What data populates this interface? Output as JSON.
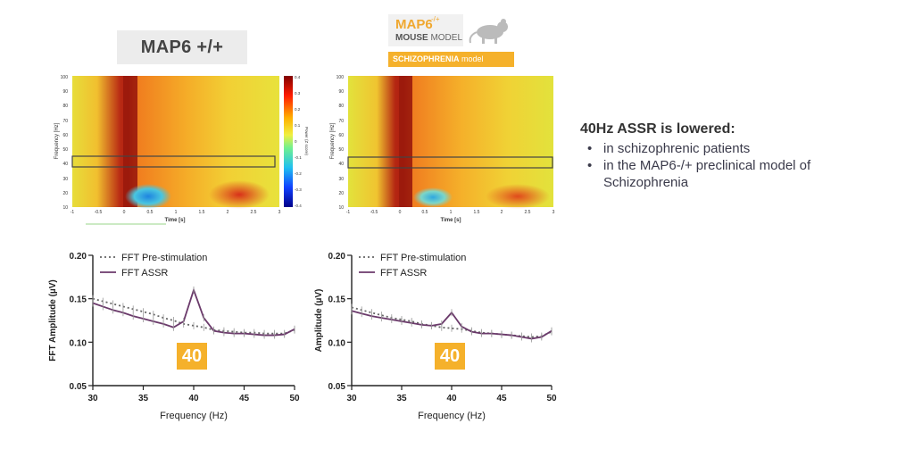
{
  "labels": {
    "map6_title": "MAP6 +/+",
    "logo_title": "MAP6",
    "logo_sup": "-/+",
    "logo_mouse": "MOUSE",
    "logo_model": " MODEL",
    "logo_bar_bold": "SCHIZOPHRENIA",
    "logo_bar_rest": " model"
  },
  "summary": {
    "heading": "40Hz ASSR is lowered:",
    "bullets": [
      "in schizophrenic patients",
      "in the MAP6-/+ preclinical model of Schizophrenia"
    ]
  },
  "colors": {
    "accent": "#f5b12b",
    "fft_assr": "#6b3a6b",
    "fft_pre": "#666666"
  },
  "chart_data": [
    {
      "type": "heatmap",
      "title": "MAP6 +/+",
      "xlabel": "Time [s]",
      "ylabel": "Frequency [Hz]",
      "x_ticks": [
        "-1",
        "-0.5",
        "0",
        "0.5",
        "1",
        "1.5",
        "2",
        "2.5",
        "3"
      ],
      "y_ticks": [
        "10",
        "20",
        "30",
        "40",
        "50",
        "60",
        "70",
        "80",
        "90",
        "100"
      ],
      "xlim": [
        -1,
        3
      ],
      "ylim": [
        10,
        100
      ],
      "colorbar_label": "Power (Z score)",
      "colorbar_ticks": [
        "0.4",
        "0.3",
        "0.2",
        "0.1",
        "0",
        "-0.1",
        "-0.2",
        "-0.3",
        "-0.4"
      ],
      "highlight_band_hz": [
        35,
        45
      ]
    },
    {
      "type": "heatmap",
      "title": "MAP6 -/+",
      "xlabel": "Time [s]",
      "ylabel": "Frequency [Hz]",
      "x_ticks": [
        "-1",
        "-0.5",
        "0",
        "0.5",
        "1",
        "1.5",
        "2",
        "2.5",
        "3"
      ],
      "y_ticks": [
        "10",
        "20",
        "30",
        "40",
        "50",
        "60",
        "70",
        "80",
        "90",
        "100"
      ],
      "xlim": [
        -1,
        3
      ],
      "ylim": [
        10,
        100
      ],
      "highlight_band_hz": [
        35,
        45
      ]
    },
    {
      "type": "line",
      "xlabel": "Frequency (Hz)",
      "ylabel": "FFT Amplitude (µV)",
      "xlim": [
        30,
        50
      ],
      "ylim": [
        0.05,
        0.2
      ],
      "x_ticks": [
        "30",
        "35",
        "40",
        "45",
        "50"
      ],
      "y_ticks": [
        "0.05",
        "0.10",
        "0.15",
        "0.20"
      ],
      "highlight_label": "40",
      "x": [
        30,
        31,
        32,
        33,
        34,
        35,
        36,
        37,
        38,
        39,
        40,
        41,
        42,
        43,
        44,
        45,
        46,
        47,
        48,
        49,
        50
      ],
      "series": [
        {
          "name": "FFT Pre-stimulation",
          "style": "dotted",
          "values": [
            0.15,
            0.147,
            0.144,
            0.141,
            0.138,
            0.135,
            0.132,
            0.128,
            0.125,
            0.121,
            0.119,
            0.117,
            0.114,
            0.113,
            0.112,
            0.111,
            0.111,
            0.11,
            0.11,
            0.11,
            0.114
          ]
        },
        {
          "name": "FFT ASSR",
          "style": "solid",
          "values": [
            0.145,
            0.141,
            0.137,
            0.134,
            0.13,
            0.127,
            0.124,
            0.121,
            0.117,
            0.124,
            0.16,
            0.128,
            0.113,
            0.111,
            0.11,
            0.11,
            0.109,
            0.108,
            0.108,
            0.109,
            0.115
          ]
        }
      ]
    },
    {
      "type": "line",
      "xlabel": "Frequency (Hz)",
      "ylabel": "Amplitude (µV)",
      "xlim": [
        30,
        50
      ],
      "ylim": [
        0.05,
        0.2
      ],
      "x_ticks": [
        "30",
        "35",
        "40",
        "45",
        "50"
      ],
      "y_ticks": [
        "0.05",
        "0.10",
        "0.15",
        "0.20"
      ],
      "highlight_label": "40",
      "x": [
        30,
        31,
        32,
        33,
        34,
        35,
        36,
        37,
        38,
        39,
        40,
        41,
        42,
        43,
        44,
        45,
        46,
        47,
        48,
        49,
        50
      ],
      "series": [
        {
          "name": "FFT Pre-stimulation",
          "style": "dotted",
          "values": [
            0.14,
            0.137,
            0.134,
            0.131,
            0.128,
            0.126,
            0.124,
            0.121,
            0.119,
            0.117,
            0.116,
            0.115,
            0.113,
            0.111,
            0.11,
            0.109,
            0.108,
            0.107,
            0.106,
            0.107,
            0.112
          ]
        },
        {
          "name": "FFT ASSR",
          "style": "solid",
          "values": [
            0.136,
            0.133,
            0.13,
            0.128,
            0.126,
            0.124,
            0.122,
            0.12,
            0.119,
            0.121,
            0.134,
            0.118,
            0.112,
            0.11,
            0.11,
            0.109,
            0.108,
            0.106,
            0.104,
            0.106,
            0.113
          ]
        }
      ]
    }
  ]
}
